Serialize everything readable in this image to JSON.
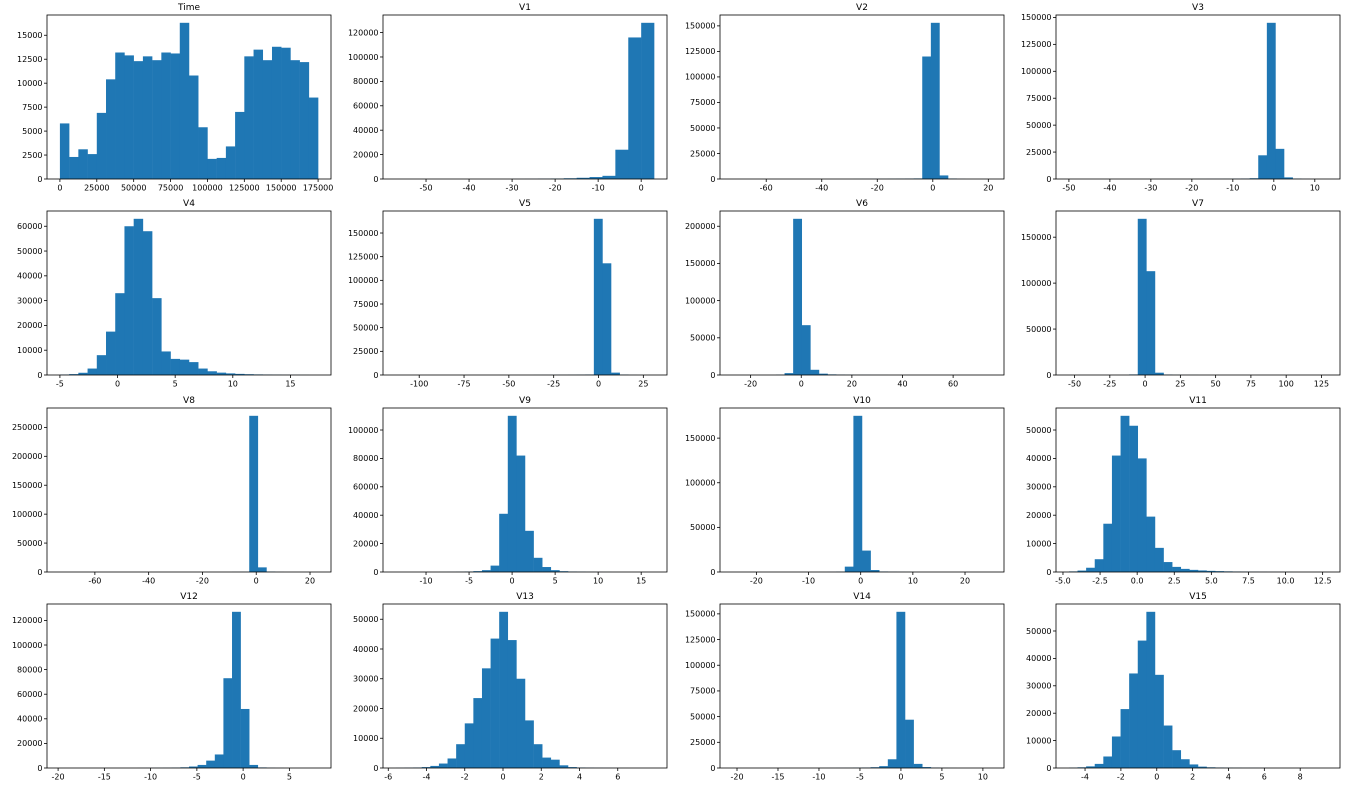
{
  "figure": {
    "background": "#ffffff",
    "bar_color": "#1f77b4",
    "text_color": "#000000",
    "grid_rows": 4,
    "grid_cols": 4
  },
  "chart_data": [
    {
      "type": "bar",
      "title": "Time",
      "x0": 0,
      "dx": 6250,
      "counts": [
        5800,
        2300,
        3100,
        2600,
        6900,
        10400,
        13200,
        12900,
        12300,
        12800,
        12400,
        13200,
        13100,
        16300,
        10800,
        5400,
        2100,
        2200,
        3400,
        7000,
        12800,
        13500,
        12400,
        13800,
        13700,
        12400,
        12200,
        8500
      ],
      "xlim": [
        -8750,
        183750
      ],
      "ylim": [
        0,
        17115
      ],
      "xtick_values": [
        0,
        25000,
        50000,
        75000,
        100000,
        125000,
        150000,
        175000
      ],
      "xtick_labels": [
        "0",
        "25000",
        "50000",
        "75000",
        "100000",
        "125000",
        "150000",
        "175000"
      ],
      "ytick_values": [
        0,
        2500,
        5000,
        7500,
        10000,
        12500,
        15000
      ],
      "ytick_labels": [
        "0",
        "2500",
        "5000",
        "7500",
        "10000",
        "12500",
        "15000"
      ]
    },
    {
      "type": "bar",
      "title": "V1",
      "x0": -57,
      "dx": 3,
      "counts": [
        15,
        12,
        10,
        10,
        12,
        15,
        18,
        25,
        35,
        60,
        100,
        200,
        350,
        600,
        1000,
        1600,
        2600,
        24000,
        116000,
        128000
      ],
      "xlim": [
        -60,
        6
      ],
      "ylim": [
        0,
        134400
      ],
      "xtick_values": [
        -50,
        -40,
        -30,
        -20,
        -10,
        0
      ],
      "xtick_labels": [
        "-50",
        "-40",
        "-30",
        "-20",
        "-10",
        "0"
      ],
      "ytick_values": [
        0,
        20000,
        40000,
        60000,
        80000,
        100000,
        120000
      ],
      "ytick_labels": [
        "0",
        "20000",
        "40000",
        "60000",
        "80000",
        "100000",
        "120000"
      ]
    },
    {
      "type": "bar",
      "title": "V2",
      "x0": -72,
      "dx": 3.1,
      "counts": [
        4,
        4,
        5,
        6,
        8,
        10,
        12,
        14,
        16,
        20,
        24,
        30,
        38,
        48,
        60,
        80,
        100,
        140,
        190,
        260,
        380,
        550,
        120000,
        153000,
        3500,
        400,
        90,
        25,
        8,
        4
      ],
      "xlim": [
        -76.65,
        25.65
      ],
      "ylim": [
        0,
        160650
      ],
      "xtick_values": [
        -60,
        -40,
        -20,
        0,
        20
      ],
      "xtick_labels": [
        "-60",
        "-40",
        "-20",
        "0",
        "20"
      ],
      "ytick_values": [
        0,
        25000,
        50000,
        75000,
        100000,
        125000,
        150000
      ],
      "ytick_labels": [
        "0",
        "25000",
        "50000",
        "75000",
        "100000",
        "125000",
        "150000"
      ]
    },
    {
      "type": "bar",
      "title": "V3",
      "x0": -50,
      "dx": 2.1,
      "counts": [
        3,
        3,
        4,
        5,
        6,
        8,
        10,
        12,
        14,
        17,
        20,
        25,
        30,
        38,
        48,
        60,
        80,
        110,
        150,
        220,
        350,
        700,
        22000,
        145000,
        28000,
        1500,
        300,
        80,
        25,
        8
      ],
      "xlim": [
        -53.15,
        16.15
      ],
      "ylim": [
        0,
        152250
      ],
      "xtick_values": [
        -50,
        -40,
        -30,
        -20,
        -10,
        0,
        10
      ],
      "xtick_labels": [
        "-50",
        "-40",
        "-30",
        "-20",
        "-10",
        "0",
        "10"
      ],
      "ytick_values": [
        0,
        25000,
        50000,
        75000,
        100000,
        125000,
        150000
      ],
      "ytick_labels": [
        "0",
        "25000",
        "50000",
        "75000",
        "100000",
        "125000",
        "150000"
      ]
    },
    {
      "type": "bar",
      "title": "V4",
      "x0": -5.0,
      "dx": 0.8,
      "counts": [
        150,
        350,
        900,
        2600,
        8000,
        17500,
        33000,
        60000,
        63000,
        58000,
        31000,
        9500,
        6500,
        6200,
        5200,
        2600,
        1500,
        950,
        650,
        450,
        320,
        230,
        160,
        110,
        70,
        40,
        25,
        15
      ],
      "xlim": [
        -6.12,
        18.52
      ],
      "ylim": [
        0,
        66150
      ],
      "xtick_values": [
        -5,
        0,
        5,
        10,
        15
      ],
      "xtick_labels": [
        "-5",
        "0",
        "5",
        "10",
        "15"
      ],
      "ytick_values": [
        0,
        10000,
        20000,
        30000,
        40000,
        50000,
        60000
      ],
      "ytick_labels": [
        "0",
        "10000",
        "20000",
        "30000",
        "40000",
        "50000",
        "60000"
      ]
    },
    {
      "type": "bar",
      "title": "V5",
      "x0": -113,
      "dx": 4.8,
      "counts": [
        3,
        3,
        4,
        5,
        6,
        7,
        8,
        10,
        12,
        14,
        17,
        20,
        25,
        30,
        38,
        48,
        60,
        80,
        105,
        140,
        190,
        280,
        500,
        165000,
        118000,
        2500,
        350,
        80,
        20,
        6
      ],
      "xlim": [
        -120.2,
        38.2
      ],
      "ylim": [
        0,
        173250
      ],
      "xtick_values": [
        -100,
        -75,
        -50,
        -25,
        0,
        25
      ],
      "xtick_labels": [
        "-100",
        "-75",
        "-50",
        "-25",
        "0",
        "25"
      ],
      "ytick_values": [
        0,
        25000,
        50000,
        75000,
        100000,
        125000,
        150000
      ],
      "ytick_labels": [
        "0",
        "25000",
        "50000",
        "75000",
        "100000",
        "125000",
        "150000"
      ]
    },
    {
      "type": "bar",
      "title": "V6",
      "x0": -27,
      "dx": 3.4,
      "counts": [
        4,
        5,
        6,
        8,
        12,
        300,
        2500,
        210000,
        67000,
        7000,
        1800,
        800,
        420,
        260,
        180,
        130,
        95,
        70,
        55,
        42,
        33,
        26,
        20,
        16,
        12,
        9,
        7,
        5,
        4,
        3
      ],
      "xlim": [
        -32.1,
        80.1
      ],
      "ylim": [
        0,
        220500
      ],
      "xtick_values": [
        -20,
        0,
        20,
        40,
        60
      ],
      "xtick_labels": [
        "-20",
        "0",
        "20",
        "40",
        "60"
      ],
      "ytick_values": [
        0,
        50000,
        100000,
        150000,
        200000
      ],
      "ytick_labels": [
        "0",
        "50000",
        "100000",
        "150000",
        "200000"
      ]
    },
    {
      "type": "bar",
      "title": "V7",
      "x0": -54,
      "dx": 6.1,
      "counts": [
        3,
        4,
        5,
        6,
        8,
        12,
        20,
        600,
        170000,
        113000,
        2500,
        400,
        150,
        90,
        60,
        45,
        34,
        26,
        20,
        16,
        12,
        10,
        8,
        6,
        5,
        4,
        3,
        3,
        2,
        2
      ],
      "xlim": [
        -63.15,
        138.15
      ],
      "ylim": [
        0,
        178500
      ],
      "xtick_values": [
        -50,
        -25,
        0,
        25,
        50,
        75,
        100,
        125
      ],
      "xtick_labels": [
        "-50",
        "-25",
        "0",
        "25",
        "50",
        "75",
        "100",
        "125"
      ],
      "ytick_values": [
        0,
        50000,
        100000,
        150000
      ],
      "ytick_labels": [
        "0",
        "50000",
        "100000",
        "150000"
      ]
    },
    {
      "type": "bar",
      "title": "V8",
      "x0": -73,
      "dx": 3.2,
      "counts": [
        3,
        3,
        4,
        4,
        5,
        6,
        7,
        8,
        10,
        12,
        14,
        17,
        20,
        24,
        29,
        35,
        43,
        52,
        65,
        85,
        120,
        250,
        270000,
        8000,
        600,
        120,
        40,
        15,
        6,
        3
      ],
      "xlim": [
        -77.8,
        27.8
      ],
      "ylim": [
        0,
        283500
      ],
      "xtick_values": [
        -60,
        -40,
        -20,
        0,
        20
      ],
      "xtick_labels": [
        "-60",
        "-40",
        "-20",
        "0",
        "20"
      ],
      "ytick_values": [
        0,
        50000,
        100000,
        150000,
        200000,
        250000
      ],
      "ytick_labels": [
        "0",
        "50000",
        "100000",
        "150000",
        "200000",
        "250000"
      ]
    },
    {
      "type": "bar",
      "title": "V9",
      "x0": -13.5,
      "dx": 1.0,
      "counts": [
        5,
        8,
        12,
        18,
        28,
        45,
        80,
        150,
        300,
        600,
        1300,
        4500,
        41000,
        110000,
        82000,
        29000,
        10000,
        3500,
        1300,
        550,
        280,
        160,
        100,
        65,
        42,
        28,
        18,
        12,
        8,
        5
      ],
      "xlim": [
        -15,
        18
      ],
      "ylim": [
        0,
        115500
      ],
      "xtick_values": [
        -10,
        -5,
        0,
        5,
        10,
        15
      ],
      "xtick_labels": [
        "-10",
        "-5",
        "0",
        "5",
        "10",
        "15"
      ],
      "ytick_values": [
        0,
        20000,
        40000,
        60000,
        80000,
        100000
      ],
      "ytick_labels": [
        "0",
        "20000",
        "40000",
        "60000",
        "80000",
        "100000"
      ]
    },
    {
      "type": "bar",
      "title": "V10",
      "x0": -24.5,
      "dx": 1.65,
      "counts": [
        4,
        5,
        6,
        8,
        10,
        13,
        17,
        22,
        30,
        42,
        60,
        100,
        300,
        6000,
        175000,
        24000,
        2200,
        500,
        200,
        110,
        70,
        48,
        34,
        25,
        18,
        13,
        10,
        7,
        5,
        4
      ],
      "xlim": [
        -26.975,
        27.475
      ],
      "ylim": [
        0,
        183750
      ],
      "xtick_values": [
        -20,
        -10,
        0,
        10,
        20
      ],
      "xtick_labels": [
        "-20",
        "-10",
        "0",
        "10",
        "20"
      ],
      "ytick_values": [
        0,
        50000,
        100000,
        150000
      ],
      "ytick_labels": [
        "0",
        "50000",
        "100000",
        "150000"
      ]
    },
    {
      "type": "bar",
      "title": "V11",
      "x0": -4.6,
      "dx": 0.58,
      "counts": [
        200,
        500,
        1500,
        4500,
        17000,
        41000,
        55000,
        51500,
        40000,
        19500,
        8500,
        3500,
        1800,
        1100,
        750,
        550,
        400,
        300,
        220,
        160,
        120,
        90,
        60,
        40,
        30,
        22,
        16,
        12,
        9,
        7
      ],
      "xlim": [
        -5.47,
        13.67
      ],
      "ylim": [
        0,
        57750
      ],
      "xtick_values": [
        -5.0,
        -2.5,
        0.0,
        2.5,
        5.0,
        7.5,
        10.0,
        12.5
      ],
      "xtick_labels": [
        "-5.0",
        "-2.5",
        "0.0",
        "2.5",
        "5.0",
        "7.5",
        "10.0",
        "12.5"
      ],
      "ytick_values": [
        0,
        10000,
        20000,
        30000,
        40000,
        50000
      ],
      "ytick_labels": [
        "0",
        "10000",
        "20000",
        "30000",
        "40000",
        "50000"
      ]
    },
    {
      "type": "bar",
      "title": "V12",
      "x0": -19.8,
      "dx": 0.93,
      "counts": [
        5,
        6,
        8,
        10,
        13,
        17,
        22,
        30,
        40,
        55,
        75,
        110,
        160,
        260,
        550,
        1200,
        2500,
        6000,
        11000,
        73000,
        127000,
        48000,
        2500,
        450,
        150,
        60,
        30,
        15,
        8,
        5
      ],
      "xlim": [
        -21.2,
        9.5
      ],
      "ylim": [
        0,
        133350
      ],
      "xtick_values": [
        -20,
        -15,
        -10,
        -5,
        0,
        5
      ],
      "xtick_labels": [
        "-20",
        "-15",
        "-10",
        "-5",
        "0",
        "5"
      ],
      "ytick_values": [
        0,
        20000,
        40000,
        60000,
        80000,
        100000,
        120000
      ],
      "ytick_labels": [
        "0",
        "20000",
        "40000",
        "60000",
        "80000",
        "100000",
        "120000"
      ]
    },
    {
      "type": "bar",
      "title": "V13",
      "x0": -5.6,
      "dx": 0.45,
      "counts": [
        40,
        80,
        160,
        300,
        700,
        1500,
        3200,
        8000,
        15000,
        23500,
        33500,
        43500,
        52500,
        43000,
        30000,
        16000,
        8000,
        3500,
        2800,
        900,
        300,
        150,
        80,
        50,
        35,
        25,
        18,
        12,
        8,
        5
      ],
      "xlim": [
        -6.275,
        8.575
      ],
      "ylim": [
        0,
        55125
      ],
      "xtick_values": [
        -6,
        -4,
        -2,
        0,
        2,
        4,
        6
      ],
      "xtick_labels": [
        "-6",
        "-4",
        "-2",
        "0",
        "2",
        "4",
        "6"
      ],
      "ytick_values": [
        0,
        10000,
        20000,
        30000,
        40000,
        50000
      ],
      "ytick_labels": [
        "0",
        "10000",
        "20000",
        "30000",
        "40000",
        "50000"
      ]
    },
    {
      "type": "bar",
      "title": "V14",
      "x0": -20.5,
      "dx": 1.05,
      "counts": [
        4,
        5,
        6,
        8,
        10,
        13,
        17,
        22,
        29,
        38,
        50,
        68,
        95,
        140,
        220,
        380,
        750,
        1800,
        8500,
        152000,
        47000,
        4000,
        900,
        300,
        130,
        60,
        30,
        15,
        8,
        4
      ],
      "xlim": [
        -22.075,
        12.575
      ],
      "ylim": [
        0,
        159600
      ],
      "xtick_values": [
        -20,
        -15,
        -10,
        -5,
        0,
        5,
        10
      ],
      "xtick_labels": [
        "-20",
        "-15",
        "-10",
        "-5",
        "0",
        "5",
        "10"
      ],
      "ytick_values": [
        0,
        25000,
        50000,
        75000,
        100000,
        125000,
        150000
      ],
      "ytick_labels": [
        "0",
        "25000",
        "50000",
        "75000",
        "100000",
        "125000",
        "150000"
      ]
    },
    {
      "type": "bar",
      "title": "V15",
      "x0": -4.9,
      "dx": 0.48,
      "counts": [
        100,
        250,
        600,
        1500,
        4200,
        11500,
        21500,
        34500,
        46500,
        57000,
        34000,
        15500,
        6500,
        3200,
        1300,
        500,
        250,
        150,
        100,
        70,
        50,
        35,
        25,
        18,
        12,
        8,
        6,
        4,
        3,
        2
      ],
      "xlim": [
        -5.62,
        10.22
      ],
      "ylim": [
        0,
        59850
      ],
      "xtick_values": [
        -4,
        -2,
        0,
        2,
        4,
        6,
        8
      ],
      "xtick_labels": [
        "-4",
        "-2",
        "0",
        "2",
        "4",
        "6",
        "8"
      ],
      "ytick_values": [
        0,
        10000,
        20000,
        30000,
        40000,
        50000
      ],
      "ytick_labels": [
        "0",
        "10000",
        "20000",
        "30000",
        "40000",
        "50000"
      ]
    }
  ]
}
